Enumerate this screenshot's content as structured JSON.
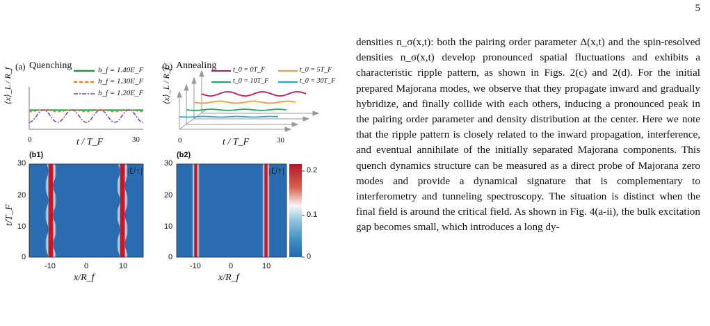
{
  "page_number": "5",
  "figure": {
    "panel_a": {
      "label": "(a)",
      "title": "Quenching",
      "legend": [
        "h_f = 1.40E_F",
        "h_f = 1.30E_F",
        "h_f = 1.20E_F"
      ],
      "ylabel": "⟨x⟩_L / R_f",
      "xlabel": "t / T_F",
      "xticks": [
        "0",
        "30"
      ]
    },
    "panel_b": {
      "label": "(b)",
      "title": "Annealing",
      "legend": [
        "t_0 = 0T_F",
        "t_0 = 5T_F",
        "t_0 = 10T_F",
        "t_0 = 30T_F"
      ],
      "ylabel": "⟨x⟩_L / R_f",
      "xlabel": "t / T_F",
      "xticks": [
        "0",
        "30"
      ]
    },
    "panel_b1": {
      "label": "(b1)",
      "ylabel": "t/T_F",
      "xlabel": "x/R_f",
      "yticks": [
        "30",
        "20",
        "10",
        "0"
      ],
      "xticks": [
        "-10",
        "0",
        "10"
      ],
      "annotation": "|U↑|"
    },
    "panel_b2": {
      "label": "(b2)",
      "xlabel": "x/R_f",
      "yticks": [
        "30",
        "20",
        "10",
        "0"
      ],
      "xticks": [
        "-10",
        "0",
        "10"
      ],
      "annotation": "|U↑|",
      "colorbar_ticks": [
        "0.2",
        "0.1",
        "0"
      ]
    }
  },
  "chart_data": [
    {
      "type": "line",
      "title": "Quenching",
      "xlabel": "t/T_F",
      "ylabel": "⟨x⟩_L/R_f",
      "xlim": [
        0,
        30
      ],
      "series": [
        {
          "name": "h_f = 1.40E_F",
          "style": "solid",
          "color": "#1a9641",
          "amplitude": 0.02,
          "periods": 0
        },
        {
          "name": "h_f = 1.30E_F",
          "style": "dashed",
          "color": "#f07f2a",
          "amplitude": 0.15,
          "periods": 4
        },
        {
          "name": "h_f = 1.20E_F",
          "style": "dashdot",
          "color": "#7b3fa8",
          "amplitude": 1.0,
          "periods": 4
        }
      ]
    },
    {
      "type": "line",
      "title": "Annealing",
      "xlabel": "t/T_F",
      "ylabel": "⟨x⟩_L/R_f",
      "xlim": [
        0,
        30
      ],
      "series": [
        {
          "name": "t_0 = 0T_F",
          "color": "#c2185b"
        },
        {
          "name": "t_0 = 5T_F",
          "color": "#f39c3d"
        },
        {
          "name": "t_0 = 10T_F",
          "color": "#2ca25f"
        },
        {
          "name": "t_0 = 30T_F",
          "color": "#1fa9d6"
        }
      ]
    },
    {
      "type": "heatmap",
      "title": "(b1)",
      "xlabel": "x/R_f",
      "ylabel": "t/T_F",
      "xlim": [
        -15,
        15
      ],
      "ylim": [
        0,
        30
      ],
      "value": "|U↑|",
      "features": "two oscillating bright stripes near x = -10 and x = 10"
    },
    {
      "type": "heatmap",
      "title": "(b2)",
      "xlabel": "x/R_f",
      "xlim": [
        -15,
        15
      ],
      "ylim": [
        0,
        30
      ],
      "value": "|U↑|",
      "color_range": [
        0,
        0.22
      ],
      "features": "two straight bright stripes near x = -10 and x = 10"
    }
  ],
  "body_text": [
    "densities n_σ(x,t): both the pairing order parameter Δ(x,t) and the spin-resolved densities n_σ(x,t) develop pronounced spatial fluctuations and exhibits a characteristic ripple pattern, as shown in Figs. 2(c) and 2(d). For the initial prepared Majorana modes, we observe that they propagate inward and gradually hybridize, and finally collide with each others, inducing a pronounced peak in the pairing order parameter and density distribution at the center. Here we note that the ripple pattern is closely related to the inward propagation, interference, and eventual annihilate of the initially separated Majorana components. This quench dynamics structure can be measured as a direct probe of Majorana zero modes and provide a dynamical signature that is complementary to interferometry and tunneling spectroscopy. The situation is distinct when the final field is around the critical field. As shown in Fig. 4(a-ii), the bulk excitation gap becomes small, which introduces a long dy-"
  ]
}
